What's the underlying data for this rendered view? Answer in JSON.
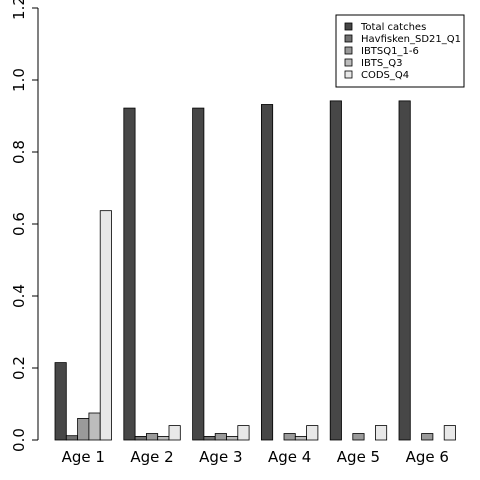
{
  "chart_data": {
    "type": "bar",
    "title": "",
    "xlabel": "",
    "ylabel": "",
    "categories": [
      "Age 1",
      "Age 2",
      "Age 3",
      "Age 4",
      "Age 5",
      "Age 6"
    ],
    "series": [
      {
        "name": "Total catches",
        "color": "#474747",
        "values": [
          0.215,
          0.922,
          0.922,
          0.932,
          0.942,
          0.942
        ]
      },
      {
        "name": "Havfisken_SD21_Q1",
        "color": "#717171",
        "values": [
          0.012,
          0.01,
          0.01,
          0.0,
          0.0,
          0.0
        ]
      },
      {
        "name": "IBTSQ1_1-6",
        "color": "#9a9a9a",
        "values": [
          0.06,
          0.018,
          0.018,
          0.018,
          0.018,
          0.018
        ]
      },
      {
        "name": "IBTS_Q3",
        "color": "#bcbcbc",
        "values": [
          0.075,
          0.01,
          0.01,
          0.01,
          0.0,
          0.0
        ]
      },
      {
        "name": "CODS_Q4",
        "color": "#e8e8e8",
        "values": [
          0.637,
          0.04,
          0.04,
          0.04,
          0.04,
          0.04
        ]
      }
    ],
    "ylim": [
      0,
      1.2
    ],
    "yticks": [
      "0.0",
      "0.2",
      "0.4",
      "0.6",
      "0.8",
      "1.0",
      "1.2"
    ],
    "grid": false,
    "legend_position": "top-right"
  }
}
